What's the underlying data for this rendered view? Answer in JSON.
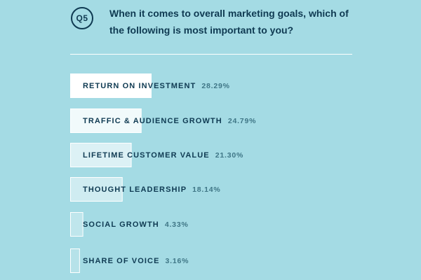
{
  "header": {
    "badge": "Q5",
    "question": "When it comes to overall marketing goals, which of the following is most important to you?"
  },
  "colors": {
    "background": "#a4dbe4",
    "text": "#0f3a52",
    "value_text": "#3f7686",
    "bar_top": "#ffffff",
    "bar_fade": "#d4eef2",
    "bar_border": "#ffffff"
  },
  "chart_data": {
    "type": "bar",
    "orientation": "horizontal",
    "categories": [
      "RETURN ON INVESTMENT",
      "TRAFFIC & AUDIENCE GROWTH",
      "LIFETIME CUSTOMER VALUE",
      "THOUGHT LEADERSHIP",
      "SOCIAL GROWTH",
      "SHARE OF VOICE"
    ],
    "values": [
      28.29,
      24.79,
      21.3,
      18.14,
      4.33,
      3.16
    ],
    "value_labels": [
      "28.29%",
      "24.79%",
      "21.30%",
      "18.14%",
      "4.33%",
      "3.16%"
    ],
    "unit": "%",
    "grid": false,
    "legend": "none"
  }
}
